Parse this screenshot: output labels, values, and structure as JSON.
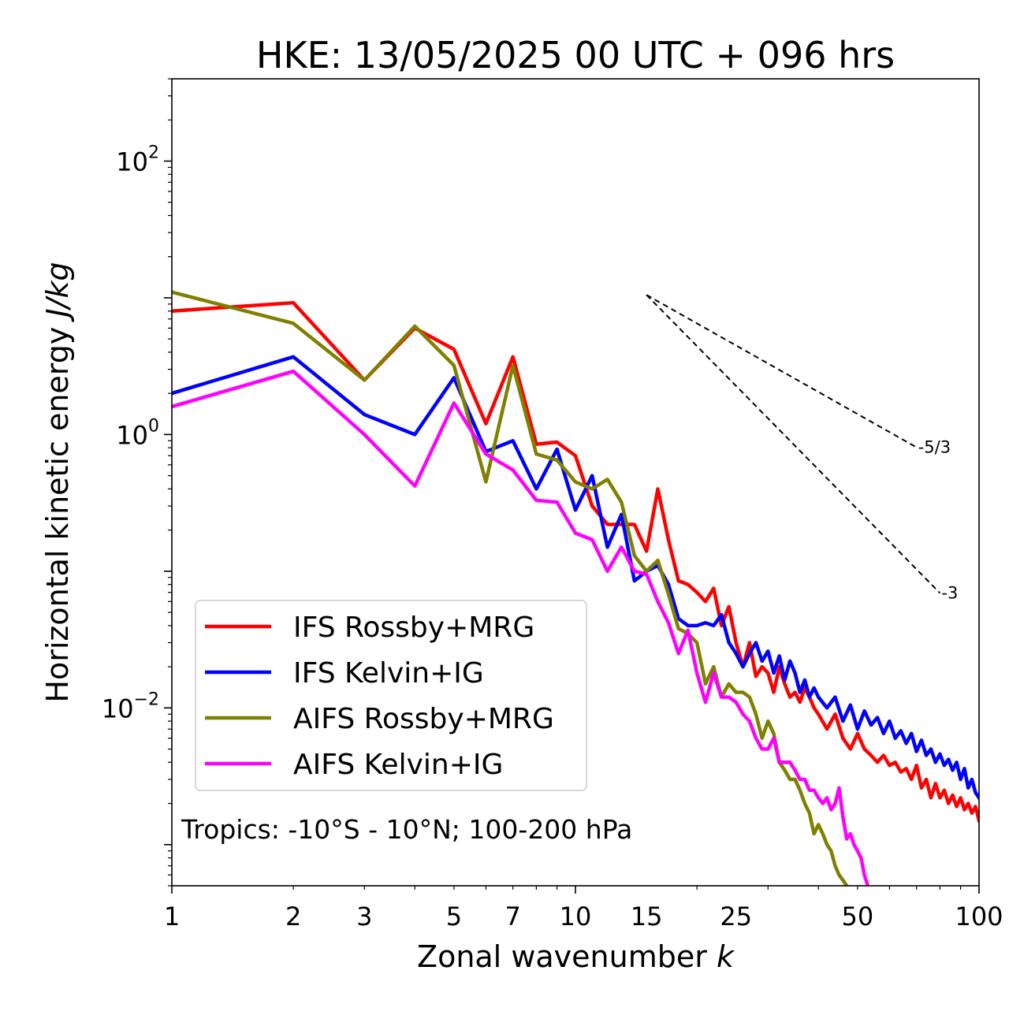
{
  "chart_data": {
    "type": "line",
    "title": "HKE: 13/05/2025 00 UTC + 096 hrs",
    "xlabel": "Zonal wavenumber",
    "xlabel_var": "k",
    "ylabel": "Horizontal kinetic energy",
    "ylabel_unit": "J/kg",
    "xscale": "log",
    "yscale": "log",
    "xlim": [
      1,
      100
    ],
    "ylim": [
      0.0005,
      400
    ],
    "xticks": [
      1,
      2,
      3,
      5,
      7,
      10,
      15,
      25,
      50,
      100
    ],
    "xtick_labels": [
      "1",
      "2",
      "3",
      "5",
      "7",
      "10",
      "15",
      "25",
      "50",
      "100"
    ],
    "yticks": [
      0.01,
      1,
      100
    ],
    "ytick_labels": [
      {
        "base": "10",
        "exp": "−2"
      },
      {
        "base": "10",
        "exp": "0"
      },
      {
        "base": "10",
        "exp": "2"
      }
    ],
    "legend_position": "lower-left",
    "annotation": "Tropics: -10°S - 10°N; 100-200 hPa",
    "reference_lines": [
      {
        "label": "-5/3",
        "slope": -1.6667,
        "x_start": 15,
        "x_end": 70,
        "y_start": 10.5
      },
      {
        "label": "-3",
        "slope": -3,
        "x_start": 15,
        "x_end": 80,
        "y_start": 10.5
      }
    ],
    "series": [
      {
        "name": "IFS Rossby+MRG",
        "color": "#ff0000",
        "x": [
          1,
          2,
          3,
          4,
          5,
          6,
          7,
          8,
          9,
          10,
          11,
          12,
          13,
          14,
          15,
          16,
          17,
          18,
          19,
          20,
          21,
          22,
          23,
          24,
          25,
          26,
          27,
          28,
          29,
          30,
          31,
          32,
          33,
          34,
          35,
          36,
          37,
          38,
          39,
          40,
          42,
          44,
          46,
          48,
          50,
          52,
          54,
          56,
          58,
          60,
          62,
          64,
          66,
          68,
          70,
          72,
          74,
          76,
          78,
          80,
          82,
          84,
          86,
          88,
          90,
          92,
          94,
          96,
          98,
          100
        ],
        "values": [
          8.0,
          9.2,
          2.5,
          6.0,
          4.2,
          1.2,
          3.7,
          0.85,
          0.88,
          0.7,
          0.3,
          0.22,
          0.22,
          0.22,
          0.14,
          0.4,
          0.17,
          0.085,
          0.08,
          0.07,
          0.06,
          0.075,
          0.04,
          0.055,
          0.03,
          0.02,
          0.03,
          0.017,
          0.02,
          0.018,
          0.013,
          0.02,
          0.015,
          0.012,
          0.013,
          0.011,
          0.014,
          0.012,
          0.01,
          0.009,
          0.007,
          0.009,
          0.006,
          0.005,
          0.0065,
          0.005,
          0.0045,
          0.004,
          0.0045,
          0.0038,
          0.004,
          0.0034,
          0.0036,
          0.003,
          0.0038,
          0.0026,
          0.003,
          0.0022,
          0.0028,
          0.0022,
          0.0025,
          0.002,
          0.0023,
          0.0019,
          0.0022,
          0.0018,
          0.002,
          0.0017,
          0.0019,
          0.0015
        ]
      },
      {
        "name": "IFS Kelvin+IG",
        "color": "#0000ff",
        "x": [
          1,
          2,
          3,
          4,
          5,
          6,
          7,
          8,
          9,
          10,
          11,
          12,
          13,
          14,
          15,
          16,
          17,
          18,
          19,
          20,
          21,
          22,
          23,
          24,
          25,
          26,
          27,
          28,
          29,
          30,
          31,
          32,
          33,
          34,
          35,
          36,
          37,
          38,
          39,
          40,
          42,
          44,
          46,
          48,
          50,
          52,
          54,
          56,
          58,
          60,
          62,
          64,
          66,
          68,
          70,
          72,
          74,
          76,
          78,
          80,
          82,
          84,
          86,
          88,
          90,
          92,
          94,
          96,
          98,
          100
        ],
        "values": [
          2.0,
          3.7,
          1.4,
          1.0,
          2.6,
          0.75,
          0.9,
          0.4,
          0.78,
          0.28,
          0.5,
          0.15,
          0.26,
          0.085,
          0.1,
          0.11,
          0.08,
          0.045,
          0.04,
          0.04,
          0.042,
          0.04,
          0.048,
          0.03,
          0.025,
          0.02,
          0.025,
          0.03,
          0.022,
          0.026,
          0.018,
          0.024,
          0.016,
          0.022,
          0.018,
          0.013,
          0.016,
          0.012,
          0.014,
          0.012,
          0.01,
          0.012,
          0.008,
          0.0105,
          0.007,
          0.0095,
          0.0075,
          0.0085,
          0.0065,
          0.008,
          0.006,
          0.0068,
          0.0055,
          0.0065,
          0.0048,
          0.0058,
          0.0045,
          0.005,
          0.004,
          0.0046,
          0.0038,
          0.0042,
          0.0035,
          0.004,
          0.003,
          0.0036,
          0.0026,
          0.003,
          0.0024,
          0.0022
        ]
      },
      {
        "name": "AIFS Rossby+MRG",
        "color": "#808000",
        "x": [
          1,
          2,
          3,
          4,
          5,
          6,
          7,
          8,
          9,
          10,
          11,
          12,
          13,
          14,
          15,
          16,
          17,
          18,
          19,
          20,
          21,
          22,
          23,
          24,
          25,
          26,
          27,
          28,
          29,
          30,
          31,
          32,
          33,
          34,
          35,
          36,
          37,
          38,
          39,
          40,
          41,
          42,
          43,
          44,
          45,
          46,
          47
        ],
        "values": [
          11.0,
          6.5,
          2.5,
          6.2,
          3.2,
          0.45,
          3.2,
          0.72,
          0.65,
          0.45,
          0.4,
          0.47,
          0.32,
          0.13,
          0.1,
          0.12,
          0.068,
          0.038,
          0.035,
          0.03,
          0.015,
          0.02,
          0.012,
          0.015,
          0.013,
          0.013,
          0.012,
          0.009,
          0.006,
          0.008,
          0.0065,
          0.004,
          0.0035,
          0.003,
          0.003,
          0.0025,
          0.002,
          0.0017,
          0.0012,
          0.0014,
          0.0012,
          0.001,
          0.0009,
          0.0007,
          0.0006,
          0.00055,
          0.0005
        ]
      },
      {
        "name": "AIFS Kelvin+IG",
        "color": "#ff00ff",
        "x": [
          1,
          2,
          3,
          4,
          5,
          6,
          7,
          8,
          9,
          10,
          11,
          12,
          13,
          14,
          15,
          16,
          17,
          18,
          19,
          20,
          21,
          22,
          23,
          24,
          25,
          26,
          27,
          28,
          29,
          30,
          31,
          32,
          33,
          34,
          35,
          36,
          37,
          38,
          39,
          40,
          41,
          42,
          43,
          44,
          45,
          46,
          47,
          48,
          49,
          50,
          51,
          52,
          53
        ],
        "values": [
          1.6,
          2.9,
          1.0,
          0.42,
          1.7,
          0.72,
          0.55,
          0.33,
          0.32,
          0.19,
          0.17,
          0.1,
          0.15,
          0.1,
          0.095,
          0.06,
          0.042,
          0.025,
          0.037,
          0.018,
          0.011,
          0.018,
          0.012,
          0.012,
          0.011,
          0.009,
          0.008,
          0.006,
          0.005,
          0.005,
          0.006,
          0.004,
          0.004,
          0.004,
          0.0035,
          0.003,
          0.003,
          0.0025,
          0.0025,
          0.0022,
          0.002,
          0.0022,
          0.0018,
          0.002,
          0.0026,
          0.0016,
          0.0011,
          0.0012,
          0.001,
          0.0009,
          0.0008,
          0.0006,
          0.0005
        ]
      }
    ]
  }
}
